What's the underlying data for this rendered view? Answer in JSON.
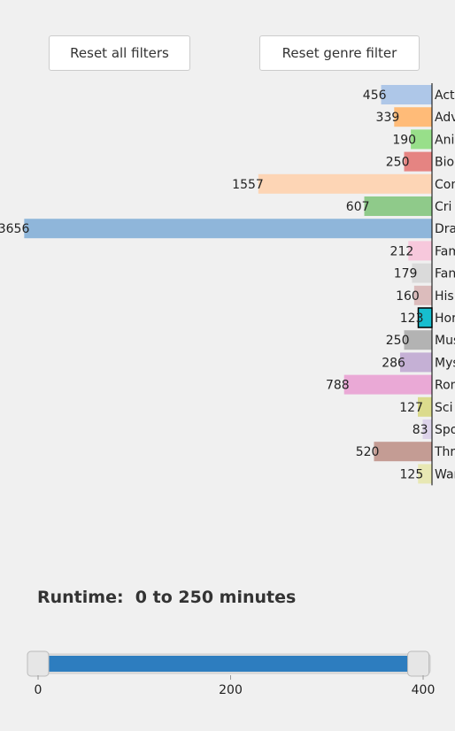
{
  "buttons": [
    "Reset all filters",
    "Reset genre filter"
  ],
  "chart_data": {
    "type": "bar",
    "orientation": "horizontal",
    "categories": [
      "Act",
      "Adv",
      "Ani",
      "Bio",
      "Com",
      "Cri",
      "Dra",
      "Fam",
      "Fan",
      "His",
      "Hor",
      "Mus",
      "Mys",
      "Rom",
      "Sci",
      "Spo",
      "Thr",
      "War"
    ],
    "values": [
      456,
      339,
      190,
      250,
      1557,
      607,
      3656,
      212,
      179,
      160,
      123,
      250,
      286,
      788,
      127,
      83,
      520,
      125
    ],
    "colors": [
      "#aec7e8",
      "#ffbb78",
      "#98df8a",
      "#e58482",
      "#fdd5b5",
      "#8fca8a",
      "#8fb6da",
      "#f7c8dc",
      "#dadada",
      "#dcbcbc",
      "#17becf",
      "#b3b3b3",
      "#c5b0d5",
      "#eaa9d6",
      "#dbdb8d",
      "#ddd3ea",
      "#c49c94",
      "#e8e8b4"
    ],
    "selected": 10
  },
  "runtime": {
    "label": "Runtime:",
    "range_text": "0 to 250 minutes",
    "slider": {
      "xlim": [
        0,
        400
      ],
      "xticks": [
        0,
        200,
        400
      ],
      "handles": [
        0,
        395
      ]
    }
  }
}
